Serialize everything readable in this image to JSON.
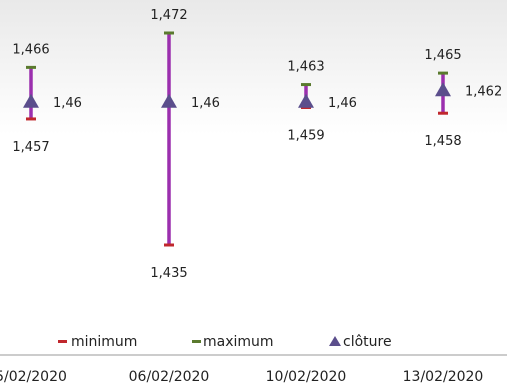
{
  "colors": {
    "range": "#9b2fae",
    "minimum": "#c0272d",
    "maximum": "#5a7a2e",
    "close": "#5b4e8c",
    "axis": "#9a9a9a"
  },
  "chart_data": {
    "type": "high-low-close",
    "x": [
      "05/02/2020",
      "06/02/2020",
      "10/02/2020",
      "13/02/2020"
    ],
    "x_labels_display": [
      "5/02/2020",
      "06/02/2020",
      "10/02/2020",
      "13/02/2020"
    ],
    "series": [
      {
        "name": "minimum",
        "values": [
          1.457,
          1.435,
          1.459,
          1.458
        ]
      },
      {
        "name": "maximum",
        "values": [
          1.466,
          1.472,
          1.463,
          1.465
        ]
      },
      {
        "name": "clôture",
        "values": [
          1.46,
          1.46,
          1.46,
          1.462
        ]
      }
    ],
    "labels": {
      "minimum": [
        "1,457",
        "1,435",
        "1,459",
        "1,458"
      ],
      "maximum": [
        "1,466",
        "1,472",
        "1,463",
        "1,465"
      ],
      "close": [
        "1,46",
        "1,46",
        "1,46",
        "1,462"
      ]
    },
    "ylim": [
      1.435,
      1.472
    ],
    "legend": {
      "position": "bottom",
      "items": [
        "minimum",
        "maximum",
        "clôture"
      ]
    },
    "grid": false
  }
}
